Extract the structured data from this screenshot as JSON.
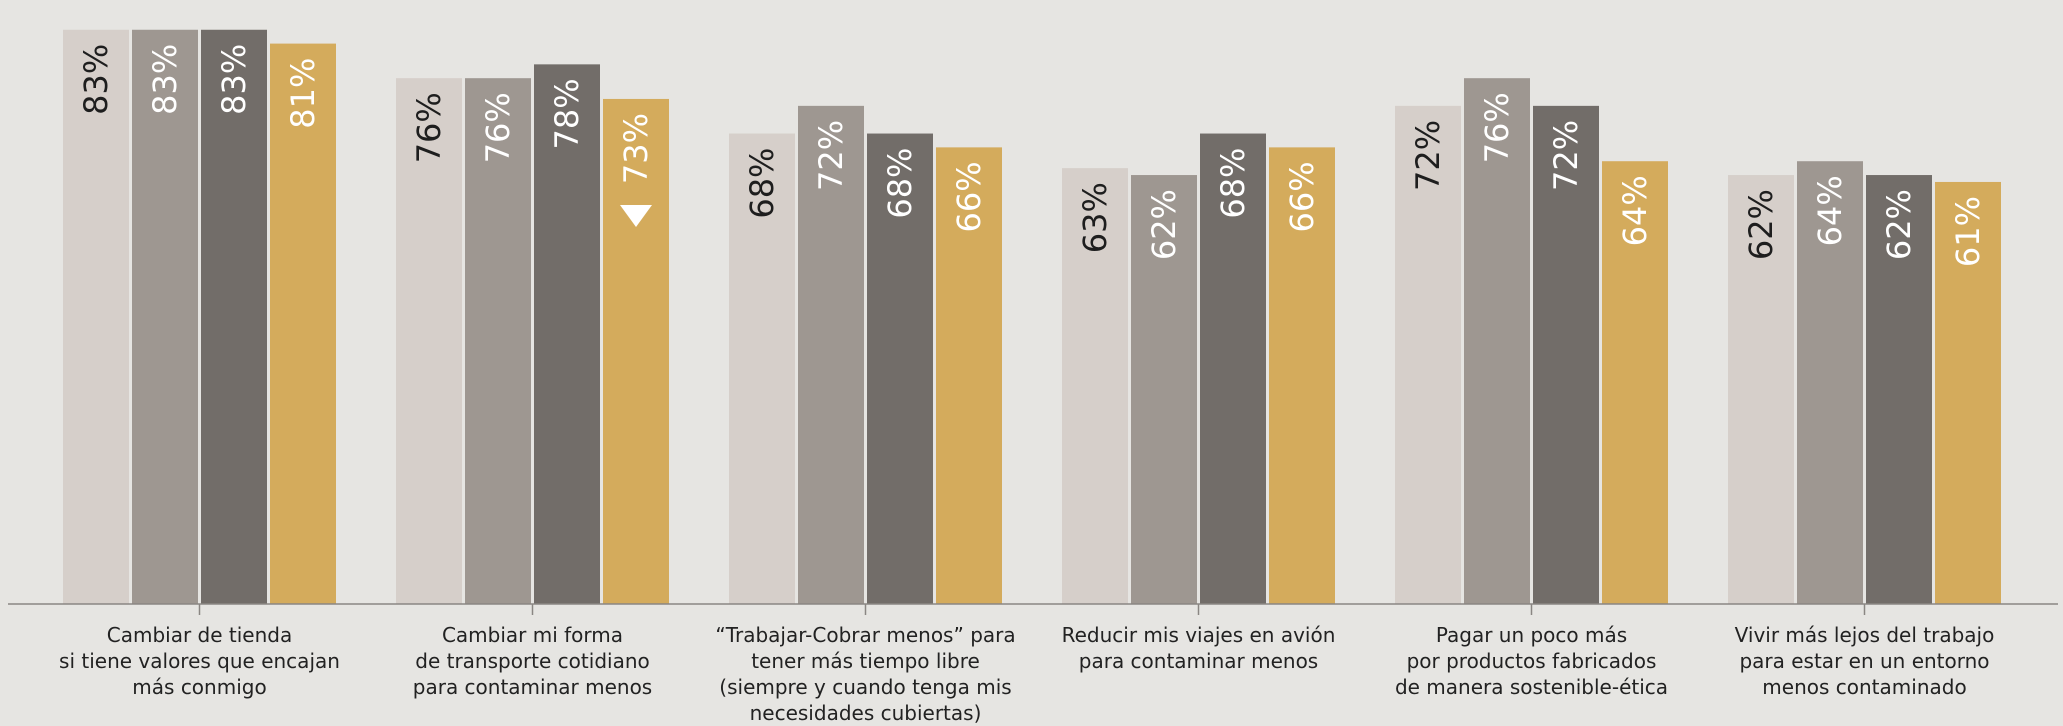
{
  "chart_data": {
    "type": "bar",
    "title": "",
    "xlabel": "",
    "ylabel": "",
    "ylim": [
      0,
      86
    ],
    "grid": false,
    "legend": "none",
    "categories": [
      [
        "Cambiar de tienda",
        "si tiene valores que encajan",
        "más conmigo"
      ],
      [
        "Cambiar mi forma",
        "de transporte cotidiano",
        "para contaminar menos"
      ],
      [
        "“Trabajar-Cobrar menos” para",
        "tener más tiempo libre",
        "(siempre y cuando tenga mis",
        "necesidades cubiertas)"
      ],
      [
        "Reducir mis viajes en avión",
        "para contaminar menos"
      ],
      [
        "Pagar un poco más",
        "por productos fabricados",
        "de manera sostenible-ética"
      ],
      [
        "Vivir más lejos del trabajo",
        "para estar en un entorno",
        "menos contaminado"
      ]
    ],
    "series": [
      {
        "values": [
          83,
          76,
          68,
          63,
          72,
          62
        ],
        "color": "#d6cfca",
        "label_color": "#1e1e1e"
      },
      {
        "values": [
          83,
          76,
          72,
          62,
          76,
          64
        ],
        "color": "#9e9791",
        "label_color": "#ffffff"
      },
      {
        "values": [
          83,
          78,
          68,
          68,
          72,
          62
        ],
        "color": "#726d69",
        "label_color": "#ffffff"
      },
      {
        "values": [
          81,
          73,
          66,
          66,
          64,
          61
        ],
        "color": "#d4ab5c",
        "label_color": "#ffffff"
      }
    ],
    "value_suffix": "%",
    "markers": [
      {
        "category_index": 1,
        "series_index": 3,
        "icon": "down-triangle-icon"
      }
    ],
    "axis_color": "#8a8683"
  }
}
